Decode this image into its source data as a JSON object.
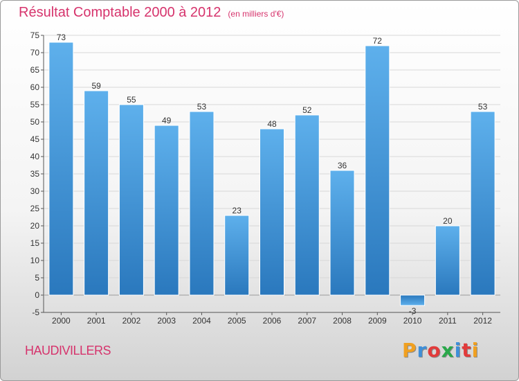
{
  "header": {
    "title": "Résultat Comptable 2000 à 2012",
    "subtitle": "(en milliers d'€)"
  },
  "location": "HAUDIVILLERS",
  "logo": {
    "letters": [
      "P",
      "r",
      "o",
      "x",
      "i",
      "t",
      "i"
    ],
    "colors": [
      "#f0a020",
      "#3f8fd8",
      "#e23b3b",
      "#2aa84a",
      "#3f8fd8",
      "#e23b3b",
      "#f0a020"
    ]
  },
  "chart_data": {
    "type": "bar",
    "title": "Résultat Comptable 2000 à 2012",
    "subtitle": "(en milliers d'€)",
    "xlabel": "",
    "ylabel": "",
    "categories": [
      "2000",
      "2001",
      "2002",
      "2003",
      "2004",
      "2005",
      "2006",
      "2007",
      "2008",
      "2009",
      "2010",
      "2011",
      "2012"
    ],
    "values": [
      73,
      59,
      55,
      49,
      53,
      23,
      48,
      52,
      36,
      72,
      -3,
      20,
      53
    ],
    "ylim": [
      -5,
      75
    ],
    "yticks": [
      -5,
      0,
      5,
      10,
      15,
      20,
      25,
      30,
      35,
      40,
      45,
      50,
      55,
      60,
      65,
      70,
      75
    ],
    "grid": true,
    "bar_color": "#4a9fe0"
  }
}
